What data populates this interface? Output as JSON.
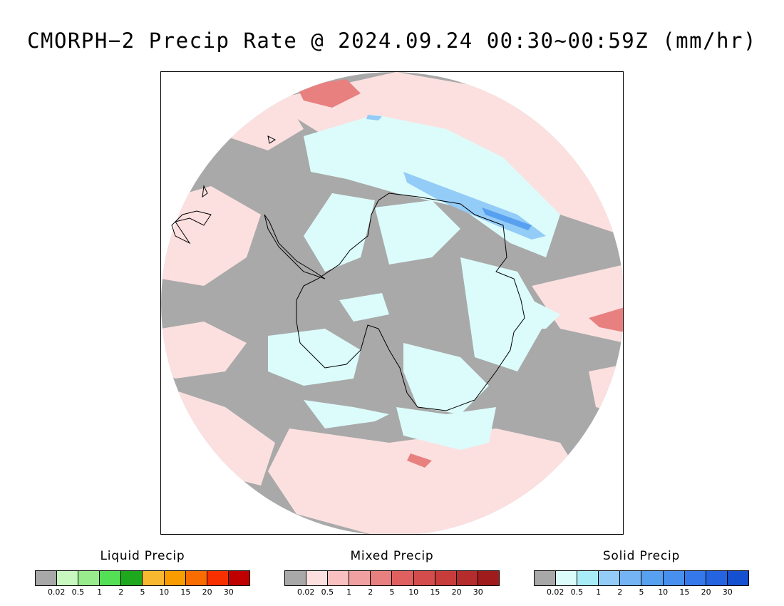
{
  "title": "CMORPH−2 Precip Rate @ 2024.09.24 00:30~00:59Z (mm/hr)",
  "map": {
    "projection": "south-polar-stereographic",
    "region": "Antarctica / Southern Ocean",
    "colors": {
      "background_no_precip": "#a9a9a9",
      "mixed_light": "#fce0e0",
      "mixed_mid": "#f4b0b0",
      "mixed_heavy": "#e07070",
      "solid_light": "#dcfcfc",
      "solid_mid": "#a8dcf8",
      "solid_heavy": "#6aaee8",
      "coastline": "#000000"
    }
  },
  "legends": [
    {
      "title": "Liquid Precip",
      "colors": [
        "#a8a8a8",
        "#c8f8c0",
        "#98ec8c",
        "#54e054",
        "#1ea81e",
        "#f8b830",
        "#f89c00",
        "#f86c00",
        "#f83000",
        "#c00000"
      ],
      "ticks": [
        "0.02",
        "0.5",
        "1",
        "2",
        "5",
        "10",
        "15",
        "20",
        "30"
      ]
    },
    {
      "title": "Mixed Precip",
      "colors": [
        "#a8a8a8",
        "#fce0e0",
        "#f8c0c0",
        "#f0a0a0",
        "#e88080",
        "#e06060",
        "#d44c4c",
        "#c83c3c",
        "#b42c2c",
        "#a01c1c"
      ],
      "ticks": [
        "0.02",
        "0.5",
        "1",
        "2",
        "5",
        "10",
        "15",
        "20",
        "30"
      ]
    },
    {
      "title": "Solid Precip",
      "colors": [
        "#a8a8a8",
        "#dcfcfc",
        "#a8ecf8",
        "#94ccf8",
        "#74b4f4",
        "#58a0f0",
        "#4890f0",
        "#3478ec",
        "#2464e0",
        "#1450d0"
      ],
      "ticks": [
        "0.02",
        "0.5",
        "1",
        "2",
        "5",
        "10",
        "15",
        "20",
        "30"
      ]
    }
  ]
}
